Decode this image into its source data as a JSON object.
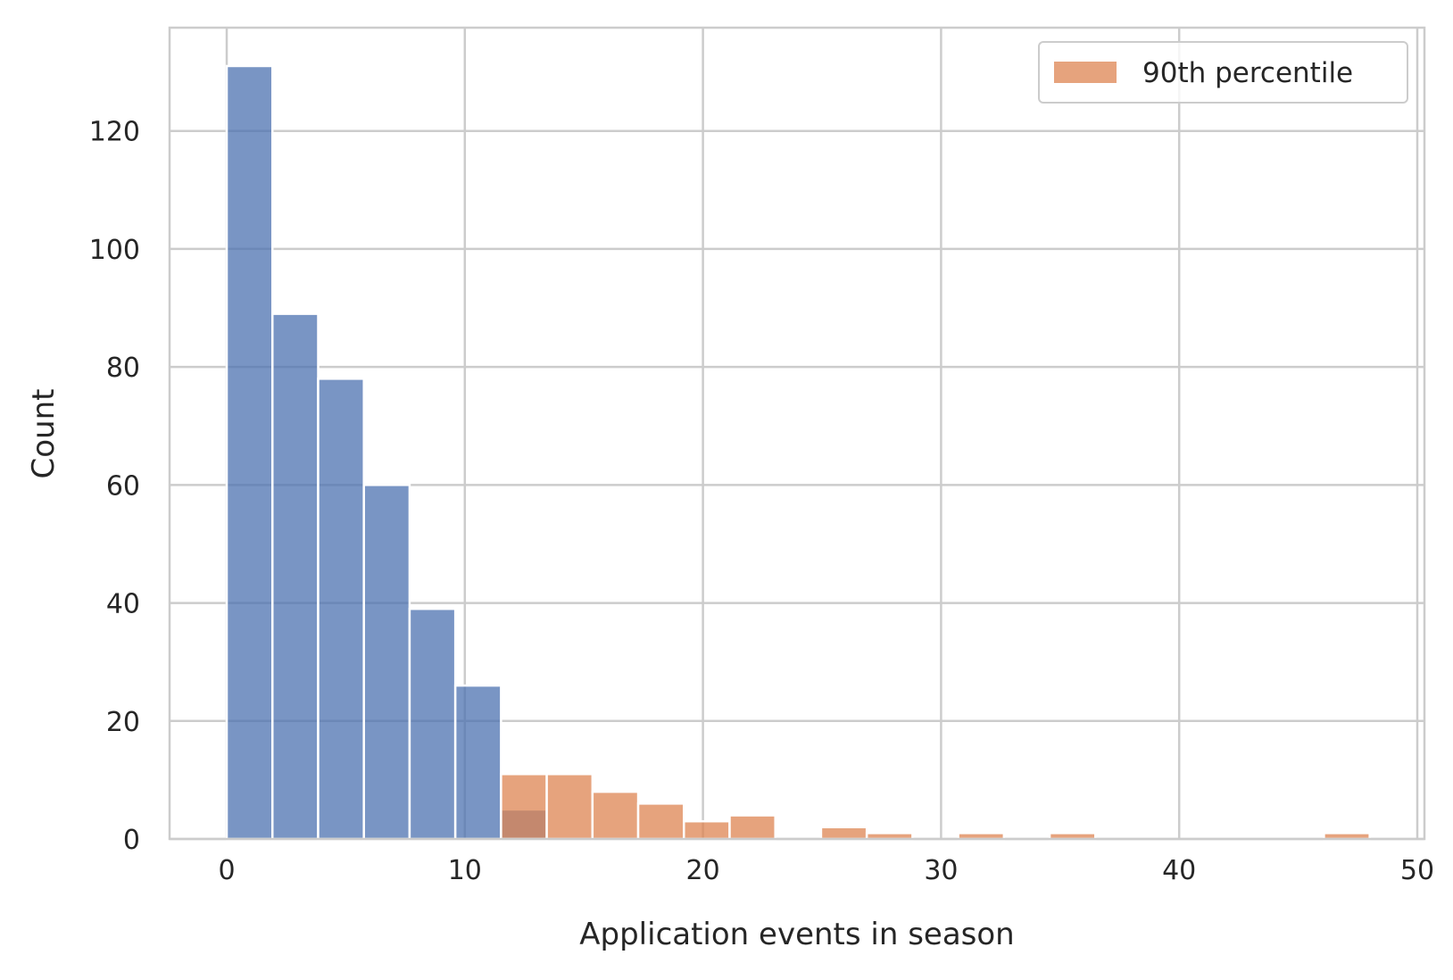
{
  "chart_data": {
    "type": "bar",
    "title": "",
    "xlabel": "Application events in season",
    "ylabel": "Count",
    "xlim": [
      -2.4,
      50.3
    ],
    "ylim": [
      0,
      137.5
    ],
    "xticks": [
      0,
      10,
      20,
      30,
      40,
      50
    ],
    "yticks": [
      0,
      20,
      40,
      60,
      80,
      100,
      120
    ],
    "grid": true,
    "legend_position": "top-right",
    "bin_width": 1.92,
    "series": [
      {
        "name": "",
        "color": "#4c72b0",
        "bins": [
          {
            "start": 0.0,
            "value": 131
          },
          {
            "start": 1.92,
            "value": 89
          },
          {
            "start": 3.84,
            "value": 78
          },
          {
            "start": 5.76,
            "value": 60
          },
          {
            "start": 7.68,
            "value": 39
          },
          {
            "start": 9.6,
            "value": 26
          },
          {
            "start": 11.52,
            "value": 5
          }
        ]
      },
      {
        "name": "90th percentile",
        "color": "#dd8452",
        "bins": [
          {
            "start": 11.52,
            "value": 11
          },
          {
            "start": 13.44,
            "value": 11
          },
          {
            "start": 15.36,
            "value": 8
          },
          {
            "start": 17.28,
            "value": 6
          },
          {
            "start": 19.2,
            "value": 3
          },
          {
            "start": 21.12,
            "value": 4
          },
          {
            "start": 24.96,
            "value": 2
          },
          {
            "start": 26.88,
            "value": 1
          },
          {
            "start": 30.72,
            "value": 1
          },
          {
            "start": 34.56,
            "value": 1
          },
          {
            "start": 46.08,
            "value": 1
          }
        ]
      }
    ],
    "legend": [
      {
        "label": "90th percentile",
        "color": "#dd8452"
      }
    ]
  }
}
